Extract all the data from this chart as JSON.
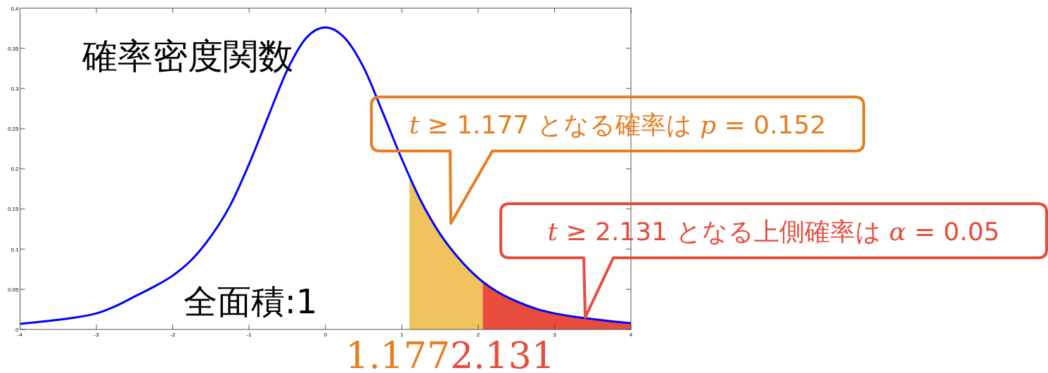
{
  "chart_data": {
    "type": "line",
    "xlim": [
      -4,
      4
    ],
    "ylim": [
      0,
      0.4
    ],
    "xticks": [
      -4,
      -3,
      -2,
      -1,
      0,
      1,
      2,
      3,
      4
    ],
    "yticks": [
      0,
      0.05,
      0.1,
      0.15,
      0.2,
      0.25,
      0.3,
      0.35,
      0.4
    ],
    "series": [
      {
        "type": "area",
        "color": "#f0c35f",
        "x": [
          1.1,
          1.25,
          1.5,
          1.75,
          2.06
        ],
        "values": [
          0.192,
          0.16,
          0.119,
          0.088,
          0.061
        ]
      },
      {
        "type": "area",
        "color": "#e74c3c",
        "x": [
          2.06,
          2.25,
          2.5,
          2.75,
          3,
          3.25,
          3.5,
          3.75,
          4
        ],
        "values": [
          0.061,
          0.047,
          0.035,
          0.026,
          0.02,
          0.016,
          0.013,
          0.01,
          0.008
        ]
      },
      {
        "color": "#0000ff",
        "x": [
          -4,
          -3.5,
          -3,
          -2.75,
          -2.5,
          -2.25,
          -2,
          -1.75,
          -1.5,
          -1.25,
          -1,
          -0.75,
          -0.5,
          -0.25,
          0,
          0.25,
          0.5,
          0.75,
          1,
          1.25,
          1.5,
          1.75,
          2,
          2.25,
          2.5,
          2.75,
          3,
          3.25,
          3.5,
          3.75,
          4
        ],
        "values": [
          0.007,
          0.012,
          0.02,
          0.029,
          0.041,
          0.053,
          0.067,
          0.087,
          0.116,
          0.154,
          0.206,
          0.265,
          0.323,
          0.363,
          0.376,
          0.363,
          0.326,
          0.27,
          0.212,
          0.16,
          0.119,
          0.088,
          0.064,
          0.047,
          0.035,
          0.026,
          0.02,
          0.016,
          0.013,
          0.01,
          0.008
        ]
      }
    ],
    "annotations": [
      "確率密度関数",
      "全面積:1",
      "*t* ≥ 1.177 となる確率は *p* = 0.152",
      "*t* ≥ 2.131 となる上側確率は *α* = 0.05",
      "1.177",
      "2.131"
    ]
  }
}
